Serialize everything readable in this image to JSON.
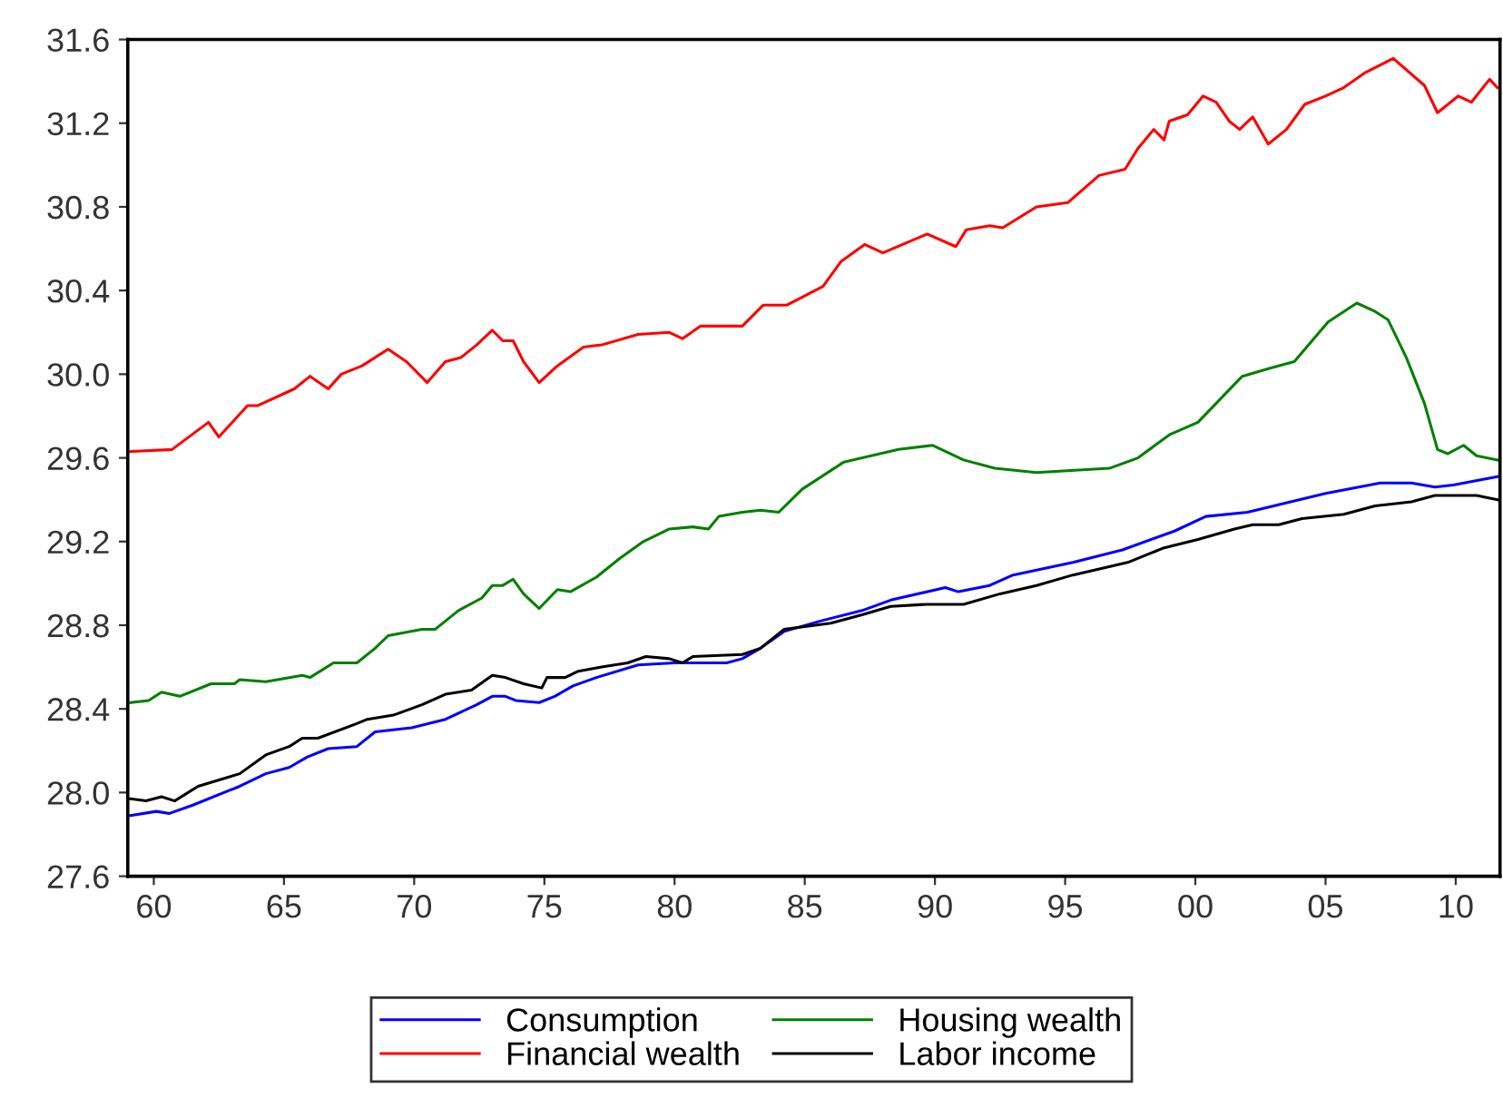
{
  "chart_data": {
    "type": "line",
    "xlim": [
      1959,
      2011.7
    ],
    "xticks": [
      {
        "value": 1960,
        "label": "60"
      },
      {
        "value": 1965,
        "label": "65"
      },
      {
        "value": 1970,
        "label": "70"
      },
      {
        "value": 1975,
        "label": "75"
      },
      {
        "value": 1980,
        "label": "80"
      },
      {
        "value": 1985,
        "label": "85"
      },
      {
        "value": 1990,
        "label": "90"
      },
      {
        "value": 1995,
        "label": "95"
      },
      {
        "value": 2000,
        "label": "00"
      },
      {
        "value": 2005,
        "label": "05"
      },
      {
        "value": 2010,
        "label": "10"
      }
    ],
    "ylim": [
      27.6,
      31.6
    ],
    "yticks": [
      {
        "value": 27.6,
        "label": "27.6"
      },
      {
        "value": 28.0,
        "label": "28.0"
      },
      {
        "value": 28.4,
        "label": "28.4"
      },
      {
        "value": 28.8,
        "label": "28.8"
      },
      {
        "value": 29.2,
        "label": "29.2"
      },
      {
        "value": 29.6,
        "label": "29.6"
      },
      {
        "value": 30.0,
        "label": "30.0"
      },
      {
        "value": 30.4,
        "label": "30.4"
      },
      {
        "value": 30.8,
        "label": "30.8"
      },
      {
        "value": 31.2,
        "label": "31.2"
      },
      {
        "value": 31.6,
        "label": "31.6"
      }
    ],
    "grid": false,
    "legend": "bottom",
    "marker": "none",
    "line_style": "solid",
    "series": [
      {
        "name": "Consumption",
        "color": "#0000ff",
        "x": [
          1959.1,
          1960.1,
          1960.6,
          1961.5,
          1963.3,
          1964.3,
          1965.2,
          1965.9,
          1966.7,
          1967.8,
          1968.5,
          1969.9,
          1971.2,
          1972.4,
          1973.0,
          1973.5,
          1973.9,
          1974.8,
          1975.4,
          1976.1,
          1977.0,
          1978.6,
          1980.0,
          1981.0,
          1982.0,
          1982.6,
          1983.3,
          1984.2,
          1985.6,
          1987.2,
          1988.3,
          1990.4,
          1990.9,
          1992.1,
          1993.0,
          1995.3,
          1997.2,
          1999.2,
          2000.4,
          2002.0,
          2005.0,
          2007.1,
          2008.3,
          2009.2,
          2009.9,
          2011.6
        ],
        "values": [
          27.89,
          27.91,
          27.9,
          27.94,
          28.03,
          28.09,
          28.12,
          28.17,
          28.21,
          28.22,
          28.29,
          28.31,
          28.35,
          28.42,
          28.46,
          28.46,
          28.44,
          28.43,
          28.46,
          28.51,
          28.55,
          28.61,
          28.62,
          28.62,
          28.62,
          28.64,
          28.69,
          28.77,
          28.82,
          28.87,
          28.92,
          28.98,
          28.96,
          28.99,
          29.04,
          29.1,
          29.16,
          29.25,
          29.32,
          29.34,
          29.43,
          29.48,
          29.48,
          29.46,
          29.47,
          29.51
        ]
      },
      {
        "name": "Financial wealth",
        "color": "#ff0000",
        "x": [
          1959.0,
          1960.7,
          1962.1,
          1962.5,
          1963.6,
          1964.0,
          1965.4,
          1966.0,
          1966.7,
          1967.2,
          1968.0,
          1969.0,
          1969.7,
          1970.5,
          1971.2,
          1971.8,
          1972.4,
          1973.0,
          1973.4,
          1973.8,
          1974.2,
          1974.8,
          1975.5,
          1976.5,
          1977.2,
          1978.6,
          1979.8,
          1980.3,
          1981.0,
          1982.6,
          1983.4,
          1984.3,
          1985.7,
          1986.4,
          1987.3,
          1988.0,
          1989.7,
          1990.8,
          1991.2,
          1992.1,
          1992.6,
          1993.9,
          1995.1,
          1996.3,
          1997.3,
          1997.8,
          1998.4,
          1998.8,
          1999.0,
          1999.7,
          2000.3,
          2000.8,
          2001.3,
          2001.7,
          2002.2,
          2002.8,
          2003.5,
          2004.2,
          2005.0,
          2005.7,
          2006.5,
          2007.6,
          2008.8,
          2009.3,
          2010.1,
          2010.6,
          2011.3,
          2011.6
        ],
        "values": [
          29.63,
          29.64,
          29.77,
          29.7,
          29.85,
          29.85,
          29.93,
          29.99,
          29.93,
          30.0,
          30.04,
          30.12,
          30.06,
          29.96,
          30.06,
          30.08,
          30.14,
          30.21,
          30.16,
          30.16,
          30.06,
          29.96,
          30.04,
          30.13,
          30.14,
          30.19,
          30.2,
          30.17,
          30.23,
          30.23,
          30.33,
          30.33,
          30.42,
          30.54,
          30.62,
          30.58,
          30.67,
          30.61,
          30.69,
          30.71,
          30.7,
          30.8,
          30.82,
          30.95,
          30.98,
          31.08,
          31.17,
          31.12,
          31.21,
          31.24,
          31.33,
          31.3,
          31.21,
          31.17,
          31.23,
          31.1,
          31.17,
          31.29,
          31.33,
          31.37,
          31.44,
          31.51,
          31.38,
          31.25,
          31.33,
          31.3,
          31.41,
          31.37
        ]
      },
      {
        "name": "Housing wealth",
        "color": "#008000",
        "x": [
          1959.1,
          1959.8,
          1960.3,
          1961.0,
          1962.2,
          1963.1,
          1963.3,
          1964.3,
          1965.7,
          1966.0,
          1966.9,
          1967.8,
          1968.5,
          1969.0,
          1970.3,
          1970.8,
          1971.7,
          1972.6,
          1973.0,
          1973.4,
          1973.8,
          1974.2,
          1974.8,
          1975.5,
          1976.0,
          1977.0,
          1977.9,
          1978.8,
          1979.8,
          1980.7,
          1981.3,
          1981.7,
          1982.6,
          1983.3,
          1984.0,
          1984.9,
          1986.5,
          1988.6,
          1989.9,
          1991.1,
          1992.3,
          1993.9,
          1996.7,
          1997.8,
          1999.0,
          2000.1,
          2001.8,
          2002.9,
          2003.8,
          2005.1,
          2006.2,
          2006.9,
          2007.4,
          2008.1,
          2008.8,
          2009.3,
          2009.7,
          2010.3,
          2010.8,
          2011.6
        ],
        "values": [
          28.43,
          28.44,
          28.48,
          28.46,
          28.52,
          28.52,
          28.54,
          28.53,
          28.56,
          28.55,
          28.62,
          28.62,
          28.69,
          28.75,
          28.78,
          28.78,
          28.87,
          28.93,
          28.99,
          28.99,
          29.02,
          28.95,
          28.88,
          28.97,
          28.96,
          29.03,
          29.12,
          29.2,
          29.26,
          29.27,
          29.26,
          29.32,
          29.34,
          29.35,
          29.34,
          29.45,
          29.58,
          29.64,
          29.66,
          29.59,
          29.55,
          29.53,
          29.55,
          29.6,
          29.71,
          29.77,
          29.99,
          30.03,
          30.06,
          30.25,
          30.34,
          30.3,
          30.26,
          30.08,
          29.86,
          29.64,
          29.62,
          29.66,
          29.61,
          29.59
        ]
      },
      {
        "name": "Labor income",
        "color": "#000000",
        "x": [
          1959.1,
          1959.7,
          1960.3,
          1960.8,
          1961.7,
          1963.3,
          1964.3,
          1965.2,
          1965.7,
          1966.3,
          1967.8,
          1968.2,
          1969.2,
          1970.3,
          1971.2,
          1972.2,
          1973.0,
          1973.5,
          1974.2,
          1974.9,
          1975.1,
          1975.8,
          1976.3,
          1977.2,
          1978.2,
          1978.9,
          1979.8,
          1980.3,
          1980.7,
          1982.6,
          1983.3,
          1984.2,
          1986.0,
          1987.2,
          1988.3,
          1989.7,
          1991.1,
          1992.5,
          1993.9,
          1995.3,
          1997.4,
          1998.8,
          2000.1,
          2001.5,
          2002.2,
          2003.2,
          2004.1,
          2005.7,
          2006.9,
          2008.3,
          2009.2,
          2010.8,
          2011.6
        ],
        "values": [
          27.97,
          27.96,
          27.98,
          27.96,
          28.03,
          28.09,
          28.18,
          28.22,
          28.26,
          28.26,
          28.33,
          28.35,
          28.37,
          28.42,
          28.47,
          28.49,
          28.56,
          28.55,
          28.52,
          28.5,
          28.55,
          28.55,
          28.58,
          28.6,
          28.62,
          28.65,
          28.64,
          28.62,
          28.65,
          28.66,
          28.69,
          28.78,
          28.81,
          28.85,
          28.89,
          28.9,
          28.9,
          28.95,
          28.99,
          29.04,
          29.1,
          29.17,
          29.21,
          29.26,
          29.28,
          29.28,
          29.31,
          29.33,
          29.37,
          29.39,
          29.42,
          29.42,
          29.4
        ]
      }
    ]
  }
}
